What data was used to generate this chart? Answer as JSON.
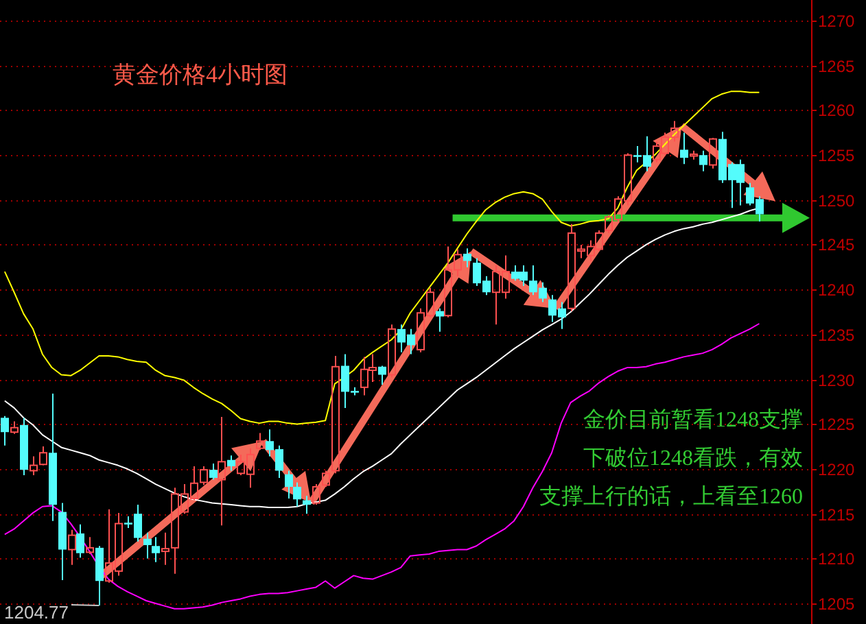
{
  "chart_data": {
    "type": "candlestick",
    "title": "黄金价格4小时图",
    "categories": [
      null,
      null,
      null,
      null,
      null,
      null,
      null,
      null,
      null,
      null,
      null,
      null,
      null,
      null,
      null,
      null,
      null,
      null,
      null,
      null,
      null,
      null,
      null,
      null,
      null,
      null,
      null,
      null,
      null,
      null,
      null,
      null,
      null,
      null,
      null,
      null,
      null,
      null,
      null,
      null,
      null,
      null,
      null,
      null,
      null,
      null,
      null,
      null,
      null,
      null,
      null,
      null,
      null,
      null,
      null,
      null,
      null,
      null,
      null,
      null,
      null,
      null,
      null,
      null,
      null,
      null,
      null,
      null,
      null,
      null,
      null,
      null,
      null,
      null,
      null,
      null,
      null,
      null,
      null,
      null,
      null,
      null,
      null,
      null,
      null,
      null
    ],
    "ohlc": [
      [
        1225.7,
        1225.9,
        1222.6,
        1224.1
      ],
      [
        1224.1,
        1225.3,
        1223.9,
        1224.6
      ],
      [
        1224.9,
        1225.7,
        1219.3,
        1219.9
      ],
      [
        1219.8,
        1221.4,
        1219.3,
        1220.4
      ],
      [
        1220.5,
        1222.5,
        1220.4,
        1221.8
      ],
      [
        1221.8,
        1228.4,
        1214.2,
        1216.0
      ],
      [
        1215.2,
        1216.2,
        1207.6,
        1211.0
      ],
      [
        1211.0,
        1213.2,
        1209.3,
        1212.6
      ],
      [
        1212.8,
        1213.8,
        1210.1,
        1210.6
      ],
      [
        1210.7,
        1212.4,
        1210.5,
        1211.2
      ],
      [
        1211.2,
        1211.4,
        1204.77,
        1207.5
      ],
      [
        1207.5,
        1215.5,
        1207.3,
        1209.5
      ],
      [
        1208.6,
        1215.1,
        1208.1,
        1213.9
      ],
      [
        1214.0,
        1214.7,
        1213.4,
        1213.8
      ],
      [
        1215.0,
        1216.0,
        1211.9,
        1212.3
      ],
      [
        1212.2,
        1212.9,
        1210.0,
        1211.5
      ],
      [
        1211.4,
        1212.4,
        1209.6,
        1210.6
      ],
      [
        1210.8,
        1212.9,
        1209.3,
        1211.1
      ],
      [
        1211.2,
        1217.9,
        1208.3,
        1217.2
      ],
      [
        1215.2,
        1218.3,
        1215.0,
        1217.2
      ],
      [
        1216.7,
        1220.3,
        1216.5,
        1218.4
      ],
      [
        1218.5,
        1220.3,
        1218.2,
        1219.9
      ],
      [
        1219.9,
        1220.6,
        1218.8,
        1219.0
      ],
      [
        1218.8,
        1225.8,
        1213.7,
        1220.8
      ],
      [
        1221.0,
        1221.5,
        1219.8,
        1220.3
      ],
      [
        1219.5,
        1221.6,
        1219.3,
        1220.8
      ],
      [
        1219.4,
        1222.3,
        1217.9,
        1221.6
      ],
      [
        1222.3,
        1224.0,
        1222.1,
        1223.1
      ],
      [
        1223.1,
        1224.4,
        1221.4,
        1222.1
      ],
      [
        1222.2,
        1222.6,
        1219.0,
        1219.8
      ],
      [
        1219.4,
        1219.8,
        1216.7,
        1218.0
      ],
      [
        1218.0,
        1218.5,
        1215.8,
        1216.6
      ],
      [
        1216.5,
        1217.0,
        1215.0,
        1216.0
      ],
      [
        1216.2,
        1218.3,
        1216.0,
        1218.0
      ],
      [
        1218.2,
        1219.8,
        1218.0,
        1219.5
      ],
      [
        1219.8,
        1232.6,
        1219.5,
        1231.4
      ],
      [
        1231.5,
        1232.8,
        1226.8,
        1228.6
      ],
      [
        1228.7,
        1229.1,
        1228.2,
        1228.5
      ],
      [
        1229.1,
        1232.5,
        1228.2,
        1231.1
      ],
      [
        1231.0,
        1232.8,
        1229.7,
        1231.3
      ],
      [
        1231.4,
        1231.5,
        1229.4,
        1230.5
      ],
      [
        1230.5,
        1236.1,
        1230.2,
        1235.6
      ],
      [
        1235.6,
        1236.1,
        1233.0,
        1234.1
      ],
      [
        1235.0,
        1235.6,
        1232.8,
        1233.8
      ],
      [
        1233.3,
        1237.9,
        1233.0,
        1237.4
      ],
      [
        1237.1,
        1240.2,
        1236.9,
        1239.7
      ],
      [
        1237.6,
        1237.9,
        1235.3,
        1237.0
      ],
      [
        1237.1,
        1244.8,
        1236.9,
        1242.2
      ],
      [
        1242.2,
        1244.5,
        1241.5,
        1243.9
      ],
      [
        1244.0,
        1244.6,
        1242.5,
        1243.2
      ],
      [
        1243.0,
        1243.5,
        1240.4,
        1240.7
      ],
      [
        1241.0,
        1241.5,
        1239.4,
        1239.7
      ],
      [
        1239.7,
        1242.7,
        1236.1,
        1242.0
      ],
      [
        1239.7,
        1243.8,
        1239.0,
        1242.0
      ],
      [
        1242.0,
        1242.7,
        1241.0,
        1241.2
      ],
      [
        1242.0,
        1242.7,
        1240.4,
        1241.0
      ],
      [
        1241.0,
        1242.7,
        1239.4,
        1239.7
      ],
      [
        1240.2,
        1240.8,
        1238.6,
        1239.0
      ],
      [
        1238.9,
        1239.4,
        1236.4,
        1237.1
      ],
      [
        1237.9,
        1238.6,
        1235.6,
        1236.9
      ],
      [
        1237.9,
        1247.3,
        1237.6,
        1246.3
      ],
      [
        1244.3,
        1245.0,
        1243.5,
        1244.5
      ],
      [
        1243.8,
        1245.5,
        1243.2,
        1244.8
      ],
      [
        1244.5,
        1246.6,
        1244.3,
        1246.3
      ],
      [
        1246.6,
        1248.3,
        1246.3,
        1248.1
      ],
      [
        1247.8,
        1250.4,
        1247.6,
        1250.1
      ],
      [
        1249.9,
        1255.2,
        1249.4,
        1255.0
      ],
      [
        1255.0,
        1256.0,
        1254.2,
        1254.8
      ],
      [
        1255.0,
        1257.1,
        1253.2,
        1253.7
      ],
      [
        1254.5,
        1256.5,
        1254.2,
        1256.0
      ],
      [
        1255.2,
        1257.5,
        1255.0,
        1257.0
      ],
      [
        1257.0,
        1258.8,
        1256.5,
        1258.0
      ],
      [
        1255.6,
        1257.5,
        1254.0,
        1254.7
      ],
      [
        1254.9,
        1255.5,
        1254.5,
        1255.1
      ],
      [
        1255.0,
        1255.5,
        1253.2,
        1253.9
      ],
      [
        1253.9,
        1256.9,
        1253.5,
        1256.8
      ],
      [
        1256.8,
        1257.6,
        1251.9,
        1252.2
      ],
      [
        1254.0,
        1254.2,
        1249.1,
        1252.2
      ],
      [
        1254.0,
        1254.5,
        1249.4,
        1251.9
      ],
      [
        1251.4,
        1251.9,
        1249.4,
        1249.6
      ],
      [
        1250.1,
        1250.4,
        1247.6,
        1248.4
      ],
      null,
      null,
      null,
      null,
      null
    ],
    "colors": [
      "#54fcfc",
      "#ff5050",
      "#54fcfc",
      "#ff5050",
      "#ff5050",
      "#54fcfc",
      "#54fcfc",
      "#ff5050",
      "#54fcfc",
      "#ff5050",
      "#54fcfc",
      "#ff5050",
      "#ff5050",
      "#54fcfc",
      "#54fcfc",
      "#54fcfc",
      "#54fcfc",
      "#ff5050",
      "#ff5050",
      "#ff5050",
      "#ff5050",
      "#ff5050",
      "#54fcfc",
      "#ff5050",
      "#54fcfc",
      "#ff5050",
      "#ff5050",
      "#ff5050",
      "#54fcfc",
      "#54fcfc",
      "#54fcfc",
      "#54fcfc",
      "#54fcfc",
      "#ff5050",
      "#ff5050",
      "#ff5050",
      "#54fcfc",
      "#54fcfc",
      "#ff5050",
      "#ff5050",
      "#54fcfc",
      "#ff5050",
      "#54fcfc",
      "#54fcfc",
      "#ff5050",
      "#ff5050",
      "#54fcfc",
      "#ff5050",
      "#ff5050",
      "#54fcfc",
      "#54fcfc",
      "#54fcfc",
      "#ff5050",
      "#ff5050",
      "#54fcfc",
      "#54fcfc",
      "#54fcfc",
      "#54fcfc",
      "#54fcfc",
      "#54fcfc",
      "#ff5050",
      "#ff5050",
      "#ff5050",
      "#ff5050",
      "#ff5050",
      "#ff5050",
      "#ff5050",
      "#54fcfc",
      "#54fcfc",
      "#ff5050",
      "#ff5050",
      "#ff5050",
      "#54fcfc",
      "#ff5050",
      "#54fcfc",
      "#ff5050",
      "#54fcfc",
      "#54fcfc",
      "#54fcfc",
      "#54fcfc",
      "#54fcfc",
      null,
      null,
      null,
      null,
      null
    ],
    "series": [
      {
        "type": "line",
        "color": "#ffff00",
        "values": [
          1242.0,
          1239.7,
          1237.3,
          1235.6,
          1232.8,
          1231.3,
          1230.5,
          1230.4,
          1231.0,
          1231.8,
          1232.6,
          1232.6,
          1232.5,
          1232.2,
          1232.0,
          1231.9,
          1231.0,
          1230.4,
          1230.2,
          1229.9,
          1229.1,
          1228.4,
          1227.8,
          1227.3,
          1226.5,
          1225.6,
          1225.3,
          1225.1,
          1225.3,
          1225.3,
          1225.1,
          1225.0,
          1225.1,
          1225.2,
          1225.4,
          1229.5,
          1230.2,
          1231.0,
          1232.2,
          1233.0,
          1233.7,
          1234.4,
          1235.5,
          1237.4,
          1238.8,
          1240.2,
          1241.6,
          1243.0,
          1244.6,
          1246.2,
          1247.6,
          1248.9,
          1249.7,
          1250.3,
          1250.7,
          1250.9,
          1250.7,
          1250.1,
          1248.7,
          1247.5,
          1247.1,
          1247.3,
          1247.6,
          1247.7,
          1247.9,
          1249.1,
          1251.4,
          1253.3,
          1254.2,
          1255.1,
          1256.2,
          1257.3,
          1258.3,
          1259.3,
          1260.3,
          1261.3,
          1261.8,
          1262.1,
          1262.1,
          1262.0,
          1262.0,
          null,
          null,
          null,
          null,
          null
        ]
      },
      {
        "type": "line",
        "color": "#ffffff",
        "values": [
          1227.6,
          1226.8,
          1225.7,
          1224.9,
          1223.8,
          1223.1,
          1222.4,
          1222.1,
          1221.8,
          1221.5,
          1221.0,
          1220.7,
          1220.4,
          1220.0,
          1219.5,
          1218.9,
          1218.3,
          1217.8,
          1217.3,
          1216.9,
          1216.6,
          1216.4,
          1216.2,
          1216.1,
          1216.0,
          1215.9,
          1215.8,
          1215.8,
          1215.7,
          1215.7,
          1215.7,
          1215.8,
          1216.1,
          1216.3,
          1216.5,
          1217.2,
          1218.0,
          1218.9,
          1219.7,
          1220.3,
          1221.0,
          1221.7,
          1222.8,
          1223.8,
          1224.8,
          1225.8,
          1226.8,
          1227.8,
          1228.8,
          1229.5,
          1230.2,
          1231.0,
          1231.8,
          1232.6,
          1233.4,
          1234.1,
          1234.8,
          1235.5,
          1236.1,
          1236.7,
          1237.5,
          1238.5,
          1239.5,
          1240.6,
          1241.7,
          1242.7,
          1243.6,
          1244.3,
          1245.0,
          1245.6,
          1246.1,
          1246.5,
          1246.8,
          1247.0,
          1247.3,
          1247.5,
          1247.8,
          1248.1,
          1248.4,
          1248.8,
          1249.1,
          null,
          null,
          null,
          null,
          null
        ]
      },
      {
        "type": "line",
        "color": "#ff00ff",
        "values": [
          1212.7,
          1213.3,
          1214.2,
          1215.1,
          1215.8,
          1215.9,
          1215.2,
          1213.9,
          1212.4,
          1210.8,
          1209.1,
          1207.7,
          1206.9,
          1206.3,
          1205.8,
          1205.3,
          1205.0,
          1204.7,
          1204.4,
          1204.4,
          1204.5,
          1204.6,
          1204.8,
          1205.1,
          1205.3,
          1205.5,
          1205.8,
          1206.0,
          1206.1,
          1206.1,
          1206.2,
          1206.4,
          1206.6,
          1206.8,
          1207.5,
          1206.7,
          1207.4,
          1208.1,
          1207.8,
          1207.7,
          1208.1,
          1208.5,
          1209.0,
          1210.3,
          1210.4,
          1210.5,
          1210.8,
          1210.9,
          1211.0,
          1211.0,
          1211.4,
          1212.1,
          1212.7,
          1213.3,
          1214.2,
          1215.8,
          1217.9,
          1219.7,
          1221.8,
          1225.1,
          1227.4,
          1228.1,
          1228.7,
          1229.6,
          1230.3,
          1230.9,
          1231.3,
          1231.3,
          1231.4,
          1231.7,
          1231.9,
          1232.2,
          1232.5,
          1232.7,
          1232.9,
          1233.3,
          1233.9,
          1234.6,
          1235.1,
          1235.6,
          1236.2,
          null,
          null,
          null,
          null,
          null
        ]
      }
    ],
    "ylim": [
      1202.7,
      1272.3
    ],
    "yticks": [
      1205,
      1210,
      1215,
      1220,
      1225,
      1230,
      1235,
      1240,
      1245,
      1250,
      1255,
      1260,
      1265,
      1270
    ],
    "grid": "y",
    "tick_labels": "y",
    "ref_lines": [
      {
        "axis": "y",
        "value": 1248,
        "color": "#30c830"
      }
    ],
    "annotations": [
      "金价目前暂看1248支撑",
      "下破位1248看跌，有效",
      "支撑上行的话，上看至1260",
      "1204.77"
    ]
  }
}
